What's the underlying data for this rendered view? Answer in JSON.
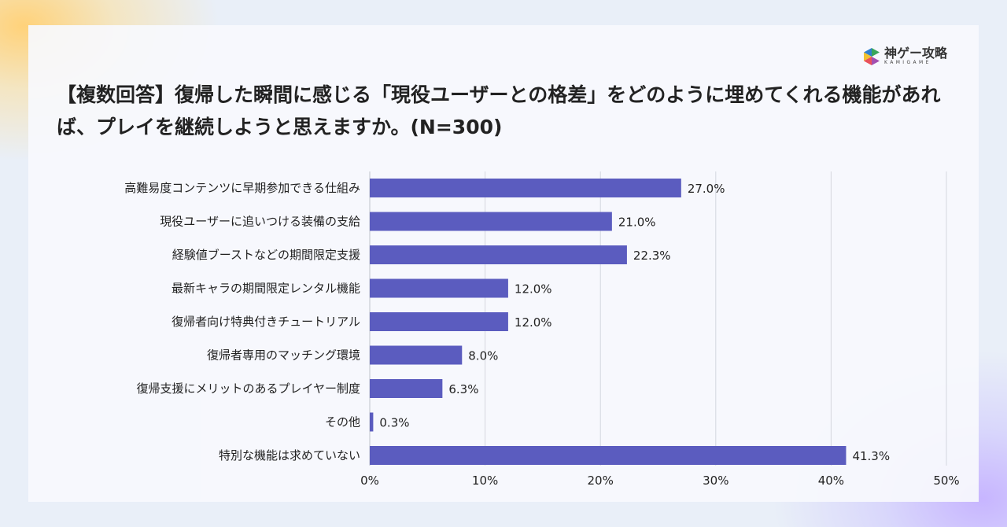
{
  "title": "【複数回答】復帰した瞬間に感じる「現役ユーザーとの格差」をどのように埋めてくれる機能があれば、プレイを継続しようと思えますか。(N=300)",
  "logo": {
    "jp": "神ゲー攻略",
    "en": "KAMIGAME"
  },
  "chart_data": {
    "type": "bar",
    "orientation": "horizontal",
    "categories": [
      "高難易度コンテンツに早期参加できる仕組み",
      "現役ユーザーに追いつける装備の支給",
      "経験値ブーストなどの期間限定支援",
      "最新キャラの期間限定レンタル機能",
      "復帰者向け特典付きチュートリアル",
      "復帰者専用のマッチング環境",
      "復帰支援にメリットのあるプレイヤー制度",
      "その他",
      "特別な機能は求めていない"
    ],
    "values": [
      27.0,
      21.0,
      22.3,
      12.0,
      12.0,
      8.0,
      6.3,
      0.3,
      41.3
    ],
    "data_labels": [
      "27.0%",
      "21.0%",
      "22.3%",
      "12.0%",
      "12.0%",
      "8.0%",
      "6.3%",
      "0.3%",
      "41.3%"
    ],
    "xlim": [
      0,
      50
    ],
    "xticks": [
      "0%",
      "10%",
      "20%",
      "30%",
      "40%",
      "50%"
    ],
    "grid": true,
    "bar_color": "#5b5cbf"
  }
}
